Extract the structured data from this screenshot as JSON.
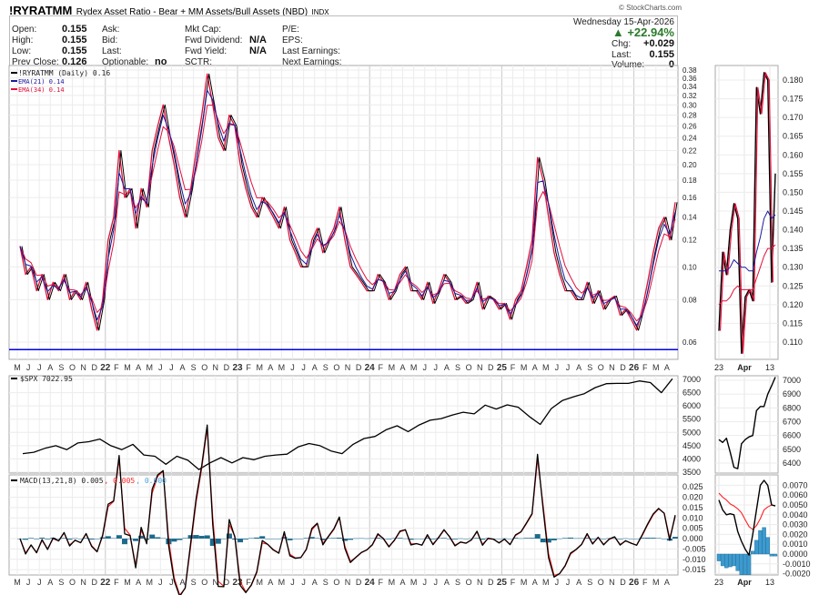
{
  "header": {
    "symbol": "!RYRATMM",
    "name": "Rydex Asset Ratio - Bear + MM Assets/Bull Assets (NBD)",
    "exchange": "INDX",
    "brand": "© StockCharts.com"
  },
  "quote": {
    "col1": [
      {
        "label": "Open:",
        "value": "0.155"
      },
      {
        "label": "High:",
        "value": "0.155"
      },
      {
        "label": "Low:",
        "value": "0.155"
      },
      {
        "label": "Prev Close:",
        "value": "0.126"
      }
    ],
    "col2": [
      {
        "label": "Ask:",
        "value": ""
      },
      {
        "label": "Bid:",
        "value": ""
      },
      {
        "label": "Last:",
        "value": ""
      },
      {
        "label": "Optionable:",
        "value": "no"
      }
    ],
    "col3": [
      {
        "label": "Mkt Cap:",
        "value": ""
      },
      {
        "label": "Fwd Dividend:",
        "value": "N/A"
      },
      {
        "label": "Fwd Yield:",
        "value": "N/A"
      },
      {
        "label": "SCTR:",
        "value": ""
      }
    ],
    "col4": [
      {
        "label": "P/E:"
      },
      {
        "label": "EPS:"
      },
      {
        "label": "Last Earnings:"
      },
      {
        "label": "Next Earnings:"
      }
    ],
    "date": "Wednesday  15-Apr-2026",
    "change_pct": "+22.94%",
    "chg_label": "Chg:",
    "chg": "+0.029",
    "last_label": "Last:",
    "last": "0.155",
    "volume_label": "Volume:",
    "volume": "0"
  },
  "colors": {
    "price": "#000000",
    "ema21": "#1a1aa0",
    "ema34": "#e0103a",
    "support": "#0000ee",
    "signal": "#ff2020",
    "hist": "#1d6a8c",
    "hist_inset": "#3c9ad0",
    "up": "#2a7a2a"
  },
  "chart_data": [
    {
      "type": "line",
      "panel": "main",
      "legend": [
        "!RYRATMM (Daily) 0.16",
        "EMA(21) 0.14",
        "EMA(34) 0.14"
      ],
      "yscale": "log",
      "ylim": [
        0.055,
        0.39
      ],
      "yticks": [
        "0.38",
        "0.36",
        "0.34",
        "0.32",
        "0.30",
        "0.28",
        "0.26",
        "0.24",
        "0.22",
        "0.20",
        "0.18",
        "0.16",
        "0.14",
        "0.12",
        "0.10",
        "0.08",
        "0.06"
      ],
      "support_line": 0.057,
      "x_start": "May 2021",
      "x_step": "half-month",
      "values": [
        0.115,
        0.095,
        0.1,
        0.085,
        0.095,
        0.08,
        0.09,
        0.085,
        0.095,
        0.08,
        0.085,
        0.08,
        0.09,
        0.075,
        0.065,
        0.08,
        0.12,
        0.14,
        0.22,
        0.16,
        0.17,
        0.13,
        0.17,
        0.15,
        0.22,
        0.26,
        0.3,
        0.24,
        0.2,
        0.16,
        0.14,
        0.17,
        0.22,
        0.28,
        0.37,
        0.3,
        0.24,
        0.22,
        0.28,
        0.26,
        0.2,
        0.17,
        0.15,
        0.14,
        0.16,
        0.15,
        0.14,
        0.13,
        0.15,
        0.12,
        0.11,
        0.1,
        0.1,
        0.12,
        0.13,
        0.11,
        0.12,
        0.13,
        0.15,
        0.12,
        0.1,
        0.095,
        0.09,
        0.085,
        0.085,
        0.095,
        0.09,
        0.08,
        0.085,
        0.095,
        0.1,
        0.085,
        0.085,
        0.08,
        0.09,
        0.078,
        0.085,
        0.095,
        0.09,
        0.08,
        0.082,
        0.078,
        0.08,
        0.09,
        0.075,
        0.082,
        0.08,
        0.075,
        0.078,
        0.07,
        0.08,
        0.085,
        0.1,
        0.12,
        0.21,
        0.18,
        0.14,
        0.11,
        0.095,
        0.085,
        0.085,
        0.08,
        0.08,
        0.09,
        0.078,
        0.085,
        0.075,
        0.08,
        0.082,
        0.072,
        0.075,
        0.07,
        0.065,
        0.075,
        0.09,
        0.11,
        0.13,
        0.14,
        0.12,
        0.155
      ]
    },
    {
      "type": "line",
      "panel": "spx",
      "legend": "$SPX 7022.95",
      "ylim": [
        3400,
        7100
      ],
      "yticks": [
        "7000",
        "6500",
        "6000",
        "5500",
        "5000",
        "4500",
        "4000",
        "3500"
      ],
      "x_start": "May 2021",
      "x_step": "month",
      "values": [
        4200,
        4250,
        4400,
        4500,
        4350,
        4600,
        4650,
        4750,
        4500,
        4350,
        4550,
        4150,
        4100,
        3800,
        4100,
        3950,
        3600,
        3850,
        4050,
        3850,
        4050,
        3970,
        4100,
        4150,
        4180,
        4450,
        4580,
        4500,
        4300,
        4200,
        4550,
        4770,
        4850,
        5100,
        5250,
        5030,
        5280,
        5460,
        5520,
        5650,
        5760,
        5700,
        6030,
        5880,
        6040,
        5950,
        5600,
        5300,
        5900,
        6200,
        6340,
        6460,
        6690,
        6840,
        6850,
        6850,
        6940,
        6880,
        6500,
        7023
      ]
    },
    {
      "type": "line",
      "panel": "macd",
      "legend": [
        "MACD(13,21,8) 0.005",
        ", 0.005",
        ", 0.000"
      ],
      "ylim": [
        -0.019,
        0.029
      ],
      "yticks": [
        "0.025",
        "0.020",
        "0.015",
        "0.010",
        "0.005",
        "0.000",
        "-0.005",
        "-0.010",
        "-0.015"
      ]
    },
    {
      "type": "line",
      "panel": "inset-main",
      "ylim": [
        0.105,
        0.183
      ],
      "yticks": [
        "0.180",
        "0.175",
        "0.170",
        "0.165",
        "0.160",
        "0.155",
        "0.150",
        "0.145",
        "0.140",
        "0.135",
        "0.130",
        "0.125",
        "0.120",
        "0.115",
        "0.110"
      ],
      "price": [
        0.113,
        0.134,
        0.128,
        0.14,
        0.147,
        0.143,
        0.107,
        0.122,
        0.124,
        0.121,
        0.178,
        0.171,
        0.182,
        0.18,
        0.126,
        0.155
      ],
      "ema21": [
        0.129,
        0.129,
        0.129,
        0.13,
        0.132,
        0.131,
        0.13,
        0.13,
        0.129,
        0.129,
        0.134,
        0.138,
        0.143,
        0.145,
        0.143,
        0.144
      ],
      "ema34": [
        0.12,
        0.121,
        0.121,
        0.122,
        0.124,
        0.125,
        0.124,
        0.124,
        0.124,
        0.124,
        0.127,
        0.13,
        0.133,
        0.135,
        0.135,
        0.136
      ]
    },
    {
      "type": "line",
      "panel": "inset-spx",
      "ylim": [
        6330,
        7040
      ],
      "yticks": [
        "7000",
        "6900",
        "6800",
        "6700",
        "6600",
        "6500",
        "6400"
      ],
      "values": [
        6570,
        6550,
        6580,
        6480,
        6370,
        6360,
        6540,
        6570,
        6590,
        6600,
        6780,
        6810,
        6810,
        6900,
        6960,
        7023
      ]
    },
    {
      "type": "bar",
      "panel": "inset-macd",
      "ylim": [
        -0.0023,
        0.0077
      ],
      "yticks": [
        "0.0070",
        "0.0060",
        "0.0050",
        "0.0040",
        "0.0030",
        "0.0020",
        "0.0010",
        "0.0000",
        "-0.0010",
        "-0.0020"
      ],
      "macd": [
        0.0055,
        0.0045,
        0.004,
        0.0041,
        0.004,
        0.0023,
        0.0013,
        0.0005,
        -0.0001,
        0.002,
        0.0045,
        0.007,
        0.0075,
        0.007,
        0.005,
        0.0049
      ],
      "signal": [
        0.0062,
        0.0058,
        0.0055,
        0.0051,
        0.0049,
        0.0046,
        0.0042,
        0.0035,
        0.0028,
        0.0025,
        0.0029,
        0.0036,
        0.0045,
        0.0048,
        0.005,
        0.0049
      ],
      "hist": [
        -0.0007,
        -0.0012,
        -0.0014,
        -0.0013,
        -0.0012,
        -0.0017,
        -0.0021,
        -0.0021,
        -0.0021,
        0.0003,
        0.0014,
        0.0024,
        0.0027,
        0.0017,
        -0.0002,
        -0.0002
      ]
    }
  ],
  "x_axis": {
    "months": [
      "M",
      "J",
      "J",
      "A",
      "S",
      "O",
      "N",
      "D",
      "22",
      "F",
      "M",
      "A",
      "M",
      "J",
      "J",
      "A",
      "S",
      "O",
      "N",
      "D",
      "23",
      "F",
      "M",
      "A",
      "M",
      "J",
      "J",
      "A",
      "S",
      "O",
      "N",
      "D",
      "24",
      "F",
      "M",
      "A",
      "M",
      "J",
      "J",
      "A",
      "S",
      "O",
      "N",
      "D",
      "25",
      "F",
      "M",
      "A",
      "M",
      "J",
      "J",
      "A",
      "S",
      "O",
      "N",
      "D",
      "26",
      "F",
      "M",
      "A"
    ],
    "inset": [
      "23",
      "Apr",
      "13"
    ]
  }
}
